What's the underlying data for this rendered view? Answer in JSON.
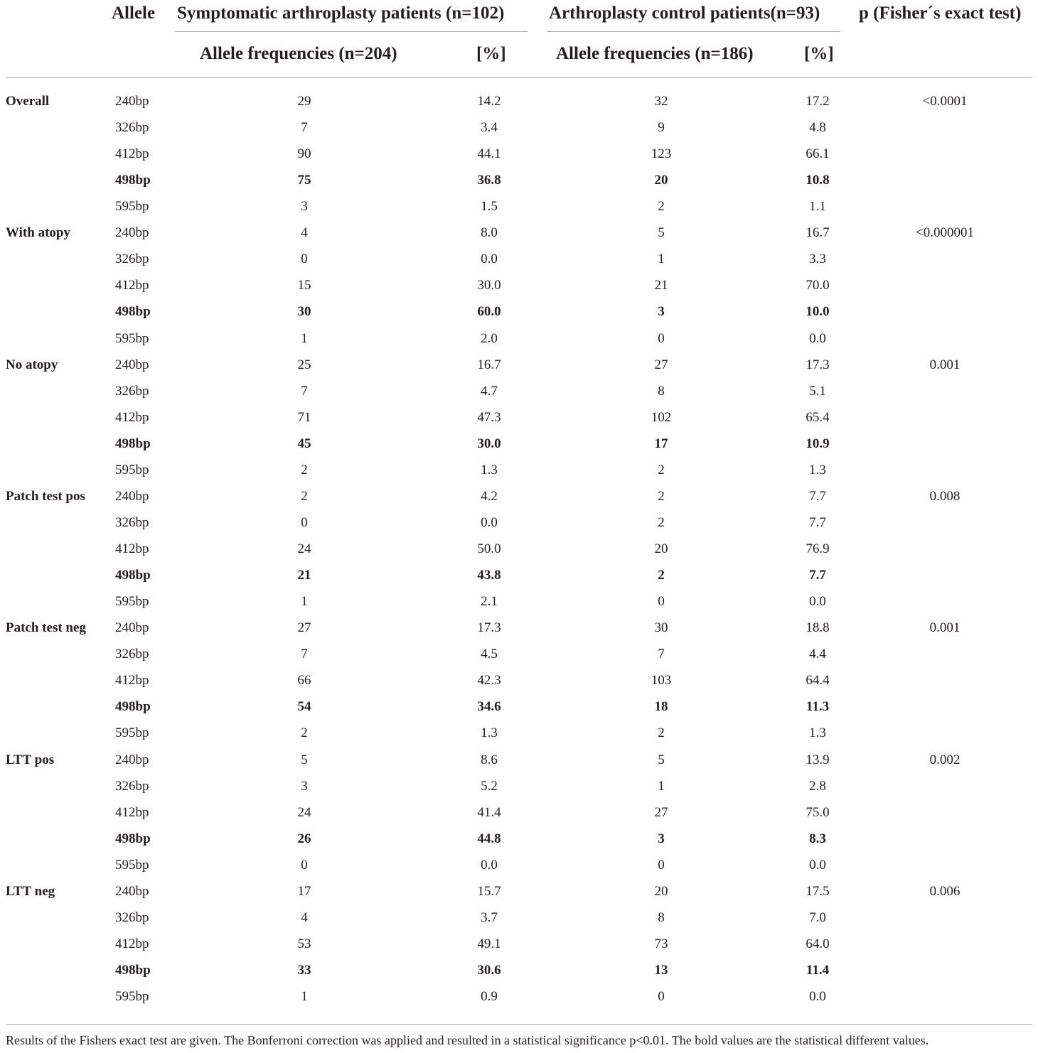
{
  "header": {
    "allele": "Allele",
    "symptomatic": "Symptomatic arthroplasty patients (n=102)",
    "control": "Arthroplasty control patients(n=93)",
    "pvalue": "p (Fisher´s exact test)",
    "sym_freq": "Allele frequencies (n=204)",
    "sym_pct": "[%]",
    "ctl_freq": "Allele frequencies (n=186)",
    "ctl_pct": "[%]"
  },
  "rows": [
    {
      "group": "Overall",
      "allele": "240bp",
      "sym_n": "29",
      "sym_pct": "14.2",
      "ctl_n": "32",
      "ctl_pct": "17.2",
      "p": "<0.0001",
      "bold": false
    },
    {
      "group": "",
      "allele": "326bp",
      "sym_n": "7",
      "sym_pct": "3.4",
      "ctl_n": "9",
      "ctl_pct": "4.8",
      "p": "",
      "bold": false
    },
    {
      "group": "",
      "allele": "412bp",
      "sym_n": "90",
      "sym_pct": "44.1",
      "ctl_n": "123",
      "ctl_pct": "66.1",
      "p": "",
      "bold": false
    },
    {
      "group": "",
      "allele": "498bp",
      "sym_n": "75",
      "sym_pct": "36.8",
      "ctl_n": "20",
      "ctl_pct": "10.8",
      "p": "",
      "bold": true
    },
    {
      "group": "",
      "allele": "595bp",
      "sym_n": "3",
      "sym_pct": "1.5",
      "ctl_n": "2",
      "ctl_pct": "1.1",
      "p": "",
      "bold": false
    },
    {
      "group": "With atopy",
      "allele": "240bp",
      "sym_n": "4",
      "sym_pct": "8.0",
      "ctl_n": "5",
      "ctl_pct": "16.7",
      "p": "<0.000001",
      "bold": false
    },
    {
      "group": "",
      "allele": "326bp",
      "sym_n": "0",
      "sym_pct": "0.0",
      "ctl_n": "1",
      "ctl_pct": "3.3",
      "p": "",
      "bold": false
    },
    {
      "group": "",
      "allele": "412bp",
      "sym_n": "15",
      "sym_pct": "30.0",
      "ctl_n": "21",
      "ctl_pct": "70.0",
      "p": "",
      "bold": false
    },
    {
      "group": "",
      "allele": "498bp",
      "sym_n": "30",
      "sym_pct": "60.0",
      "ctl_n": "3",
      "ctl_pct": "10.0",
      "p": "",
      "bold": true
    },
    {
      "group": "",
      "allele": "595bp",
      "sym_n": "1",
      "sym_pct": "2.0",
      "ctl_n": "0",
      "ctl_pct": "0.0",
      "p": "",
      "bold": false
    },
    {
      "group": "No atopy",
      "allele": "240bp",
      "sym_n": "25",
      "sym_pct": "16.7",
      "ctl_n": "27",
      "ctl_pct": "17.3",
      "p": "0.001",
      "bold": false
    },
    {
      "group": "",
      "allele": "326bp",
      "sym_n": "7",
      "sym_pct": "4.7",
      "ctl_n": "8",
      "ctl_pct": "5.1",
      "p": "",
      "bold": false
    },
    {
      "group": "",
      "allele": "412bp",
      "sym_n": "71",
      "sym_pct": "47.3",
      "ctl_n": "102",
      "ctl_pct": "65.4",
      "p": "",
      "bold": false
    },
    {
      "group": "",
      "allele": "498bp",
      "sym_n": "45",
      "sym_pct": "30.0",
      "ctl_n": "17",
      "ctl_pct": "10.9",
      "p": "",
      "bold": true
    },
    {
      "group": "",
      "allele": "595bp",
      "sym_n": "2",
      "sym_pct": "1.3",
      "ctl_n": "2",
      "ctl_pct": "1.3",
      "p": "",
      "bold": false
    },
    {
      "group": "Patch test pos",
      "allele": "240bp",
      "sym_n": "2",
      "sym_pct": "4.2",
      "ctl_n": "2",
      "ctl_pct": "7.7",
      "p": "0.008",
      "bold": false
    },
    {
      "group": "",
      "allele": "326bp",
      "sym_n": "0",
      "sym_pct": "0.0",
      "ctl_n": "2",
      "ctl_pct": "7.7",
      "p": "",
      "bold": false
    },
    {
      "group": "",
      "allele": "412bp",
      "sym_n": "24",
      "sym_pct": "50.0",
      "ctl_n": "20",
      "ctl_pct": "76.9",
      "p": "",
      "bold": false
    },
    {
      "group": "",
      "allele": "498bp",
      "sym_n": "21",
      "sym_pct": "43.8",
      "ctl_n": "2",
      "ctl_pct": "7.7",
      "p": "",
      "bold": true
    },
    {
      "group": "",
      "allele": "595bp",
      "sym_n": "1",
      "sym_pct": "2.1",
      "ctl_n": "0",
      "ctl_pct": "0.0",
      "p": "",
      "bold": false
    },
    {
      "group": "Patch test neg",
      "allele": "240bp",
      "sym_n": "27",
      "sym_pct": "17.3",
      "ctl_n": "30",
      "ctl_pct": "18.8",
      "p": "0.001",
      "bold": false
    },
    {
      "group": "",
      "allele": "326bp",
      "sym_n": "7",
      "sym_pct": "4.5",
      "ctl_n": "7",
      "ctl_pct": "4.4",
      "p": "",
      "bold": false
    },
    {
      "group": "",
      "allele": "412bp",
      "sym_n": "66",
      "sym_pct": "42.3",
      "ctl_n": "103",
      "ctl_pct": "64.4",
      "p": "",
      "bold": false
    },
    {
      "group": "",
      "allele": "498bp",
      "sym_n": "54",
      "sym_pct": "34.6",
      "ctl_n": "18",
      "ctl_pct": "11.3",
      "p": "",
      "bold": true
    },
    {
      "group": "",
      "allele": "595bp",
      "sym_n": "2",
      "sym_pct": "1.3",
      "ctl_n": "2",
      "ctl_pct": "1.3",
      "p": "",
      "bold": false
    },
    {
      "group": "LTT pos",
      "allele": "240bp",
      "sym_n": "5",
      "sym_pct": "8.6",
      "ctl_n": "5",
      "ctl_pct": "13.9",
      "p": "0.002",
      "bold": false
    },
    {
      "group": "",
      "allele": "326bp",
      "sym_n": "3",
      "sym_pct": "5.2",
      "ctl_n": "1",
      "ctl_pct": "2.8",
      "p": "",
      "bold": false
    },
    {
      "group": "",
      "allele": "412bp",
      "sym_n": "24",
      "sym_pct": "41.4",
      "ctl_n": "27",
      "ctl_pct": "75.0",
      "p": "",
      "bold": false
    },
    {
      "group": "",
      "allele": "498bp",
      "sym_n": "26",
      "sym_pct": "44.8",
      "ctl_n": "3",
      "ctl_pct": "8.3",
      "p": "",
      "bold": true
    },
    {
      "group": "",
      "allele": "595bp",
      "sym_n": "0",
      "sym_pct": "0.0",
      "ctl_n": "0",
      "ctl_pct": "0.0",
      "p": "",
      "bold": false
    },
    {
      "group": "LTT neg",
      "allele": "240bp",
      "sym_n": "17",
      "sym_pct": "15.7",
      "ctl_n": "20",
      "ctl_pct": "17.5",
      "p": "0.006",
      "bold": false
    },
    {
      "group": "",
      "allele": "326bp",
      "sym_n": "4",
      "sym_pct": "3.7",
      "ctl_n": "8",
      "ctl_pct": "7.0",
      "p": "",
      "bold": false
    },
    {
      "group": "",
      "allele": "412bp",
      "sym_n": "53",
      "sym_pct": "49.1",
      "ctl_n": "73",
      "ctl_pct": "64.0",
      "p": "",
      "bold": false
    },
    {
      "group": "",
      "allele": "498bp",
      "sym_n": "33",
      "sym_pct": "30.6",
      "ctl_n": "13",
      "ctl_pct": "11.4",
      "p": "",
      "bold": true
    },
    {
      "group": "",
      "allele": "595bp",
      "sym_n": "1",
      "sym_pct": "0.9",
      "ctl_n": "0",
      "ctl_pct": "0.0",
      "p": "",
      "bold": false
    }
  ],
  "footnote": "Results of the Fishers exact test are given. The Bonferroni correction was applied and resulted in a statistical significance p<0.01. The bold values are the statistical different values."
}
